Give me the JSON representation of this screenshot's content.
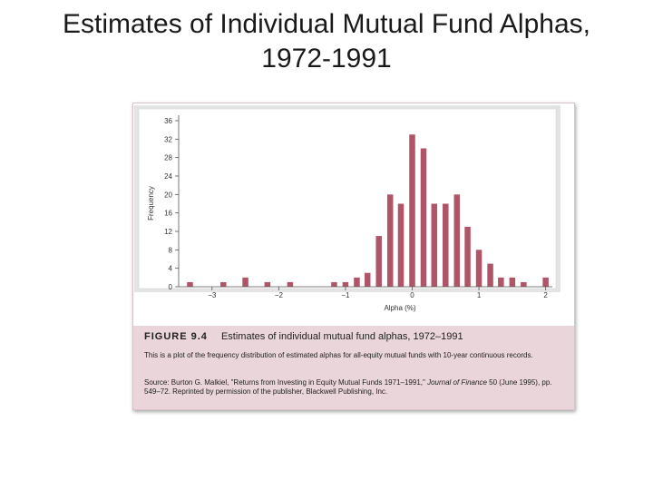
{
  "slide": {
    "title_line1": "Estimates of Individual Mutual Fund Alphas,",
    "title_line2": "1972-1991"
  },
  "caption": {
    "figure_label": "FIGURE 9.4",
    "figure_title": "Estimates of individual mutual fund alphas, 1972–1991",
    "description": "This is a plot of the frequency distribution of estimated alphas for all-equity mutual funds with 10-year continuous records.",
    "source_prefix": "Source: Burton G. Malkiel, \"Returns from Investing in Equity Mutual Funds 1971–1991,\"",
    "source_journal": "Journal of Finance",
    "source_suffix": "50 (June 1995), pp. 549–72. Reprinted by permission of the publisher, Blackwell Publishing, Inc."
  },
  "colors": {
    "bar": "#b05468",
    "plot_bg": "#ffffff",
    "caption_bg": "#ead5da",
    "frame": "#d9c3c9"
  },
  "chart_data": {
    "type": "bar",
    "title": "",
    "xlabel": "Alpha (%)",
    "ylabel": "Frequency",
    "ylim": [
      0,
      36
    ],
    "xlim": [
      -3.5,
      2.1
    ],
    "grid": false,
    "y_ticks": [
      0,
      4,
      8,
      12,
      16,
      20,
      24,
      28,
      32,
      36
    ],
    "x_ticks": [
      {
        "value": -3,
        "label": "−3"
      },
      {
        "value": -2,
        "label": "−2"
      },
      {
        "value": -1,
        "label": "−1"
      },
      {
        "value": 0,
        "label": "0"
      },
      {
        "value": 1,
        "label": "1"
      },
      {
        "value": 2,
        "label": "2"
      }
    ],
    "x": [
      -3.33,
      -2.83,
      -2.5,
      -2.17,
      -1.83,
      -1.17,
      -1.0,
      -0.83,
      -0.67,
      -0.5,
      -0.33,
      -0.17,
      0.0,
      0.17,
      0.33,
      0.5,
      0.67,
      0.83,
      1.0,
      1.17,
      1.33,
      1.5,
      1.67,
      2.0
    ],
    "values": [
      1,
      1,
      2,
      1,
      1,
      1,
      1,
      2,
      3,
      11,
      20,
      18,
      33,
      30,
      18,
      18,
      20,
      13,
      8,
      5,
      2,
      2,
      1,
      2
    ]
  }
}
